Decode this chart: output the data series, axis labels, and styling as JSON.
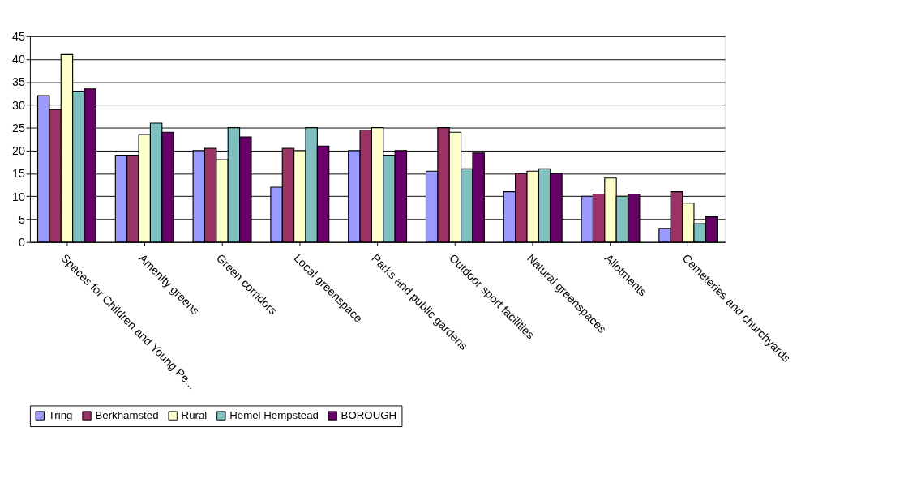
{
  "chart_data": {
    "type": "bar",
    "categories": [
      "Spaces for Children and Young Pe...",
      "Amenity greens",
      "Green corridors",
      "Local greenspace",
      "Parks and public gardens",
      "Outdoor sport facilities",
      "Natural greenspaces",
      "Allotments",
      "Cemeteries and churchyards"
    ],
    "series": [
      {
        "name": "Tring",
        "color": "#9999ff",
        "values": [
          32,
          19,
          20,
          12,
          20,
          15.5,
          11,
          10,
          3
        ]
      },
      {
        "name": "Berkhamsted",
        "color": "#993366",
        "values": [
          29,
          19,
          20.5,
          20.5,
          24.5,
          25,
          15,
          10.5,
          11
        ]
      },
      {
        "name": "Rural",
        "color": "#ffffcc",
        "values": [
          41,
          23.5,
          18,
          20,
          25,
          24,
          15.5,
          14,
          8.5
        ]
      },
      {
        "name": "Hemel Hempstead",
        "color": "#7fbfbf",
        "values": [
          33,
          26,
          25,
          25,
          19,
          16,
          16,
          10,
          4
        ]
      },
      {
        "name": "BOROUGH",
        "color": "#660066",
        "values": [
          33.5,
          24,
          23,
          21,
          20,
          19.5,
          15,
          10.5,
          5.5
        ]
      }
    ],
    "ylim": [
      0,
      45
    ],
    "yticks": [
      0,
      5,
      10,
      15,
      20,
      25,
      30,
      35,
      40,
      45
    ],
    "grid": "y",
    "legend": "bottom"
  }
}
